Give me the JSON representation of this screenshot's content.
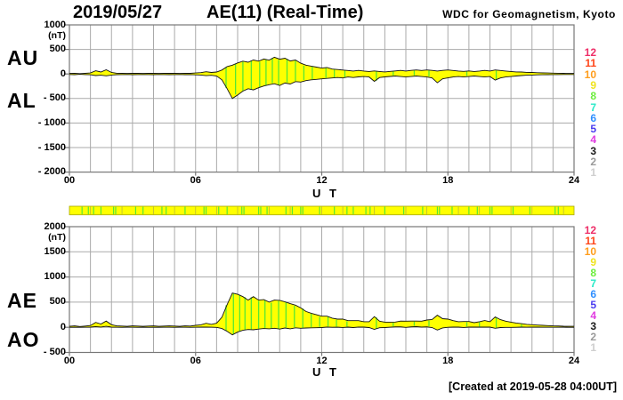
{
  "header": {
    "date": "2019/05/27",
    "title": "AE(11) (Real-Time)",
    "credit": "WDC for Geomagnetism, Kyoto"
  },
  "footer": {
    "created": "[Created at 2019-05-28 04:00UT]"
  },
  "colors": {
    "fill": "#ffff00",
    "trace": "#111111",
    "grid": "#aaaaaa",
    "border": "#777777",
    "gap_line": "#55e833",
    "bar_fill": "#ffff00",
    "bar_border": "#a8a800",
    "bar_dark_tick": "#b8b83a"
  },
  "station_numbers": [
    {
      "label": "12",
      "color": "#ee2e68"
    },
    {
      "label": "11",
      "color": "#ff4418"
    },
    {
      "label": "10",
      "color": "#ff9d1c"
    },
    {
      "label": "9",
      "color": "#f0e320"
    },
    {
      "label": "8",
      "color": "#6ced3d"
    },
    {
      "label": "7",
      "color": "#2ae9c8"
    },
    {
      "label": "6",
      "color": "#2f8fff"
    },
    {
      "label": "5",
      "color": "#4a3cf0"
    },
    {
      "label": "4",
      "color": "#e03ce0"
    },
    {
      "label": "3",
      "color": "#1a1a1a"
    },
    {
      "label": "2",
      "color": "#9a9a9a"
    },
    {
      "label": "1",
      "color": "#cfcfcf"
    }
  ],
  "chart_data": [
    {
      "type": "area",
      "panel": "top",
      "xlabel": "U T",
      "unit": "(nT)",
      "xlim": [
        0,
        24
      ],
      "ylim": [
        -2000,
        1000
      ],
      "x_ticks": [
        "00",
        "06",
        "12",
        "18",
        "24"
      ],
      "x_tick_hours": [
        0,
        6,
        12,
        18,
        24
      ],
      "y_ticks": [
        "1000",
        "500",
        "0",
        "- 500",
        "- 1000",
        "- 1500",
        "- 2000"
      ],
      "y_tick_values": [
        1000,
        500,
        0,
        -500,
        -1000,
        -1500,
        -2000
      ],
      "x_start": 0,
      "x_step_hours": 0.25,
      "series": [
        {
          "name": "AU",
          "values": [
            10,
            15,
            8,
            12,
            20,
            65,
            40,
            85,
            30,
            15,
            12,
            10,
            15,
            12,
            10,
            12,
            15,
            10,
            12,
            15,
            12,
            10,
            15,
            12,
            20,
            28,
            45,
            30,
            40,
            80,
            150,
            180,
            225,
            260,
            240,
            285,
            260,
            305,
            280,
            340,
            300,
            320,
            265,
            285,
            220,
            180,
            160,
            140,
            120,
            130,
            100,
            90,
            80,
            70,
            60,
            72,
            60,
            50,
            62,
            50,
            42,
            52,
            62,
            72,
            60,
            72,
            82,
            70,
            82,
            72,
            60,
            72,
            82,
            70,
            60,
            52,
            62,
            50,
            60,
            72,
            60,
            82,
            70,
            60,
            50,
            42,
            40,
            32,
            30,
            26,
            22,
            20,
            16,
            15,
            12,
            10,
            10
          ]
        },
        {
          "name": "AL",
          "values": [
            -10,
            -14,
            -8,
            -12,
            -16,
            -32,
            -26,
            -38,
            -22,
            -14,
            -12,
            -10,
            -14,
            -12,
            -10,
            -12,
            -14,
            -10,
            -12,
            -14,
            -12,
            -10,
            -14,
            -12,
            -18,
            -22,
            -35,
            -28,
            -42,
            -120,
            -300,
            -500,
            -430,
            -350,
            -300,
            -325,
            -280,
            -245,
            -220,
            -200,
            -235,
            -185,
            -205,
            -155,
            -165,
            -135,
            -120,
            -110,
            -100,
            -90,
            -82,
            -72,
            -82,
            -62,
            -72,
            -60,
            -52,
            -62,
            -150,
            -72,
            -60,
            -50,
            -42,
            -52,
            -62,
            -52,
            -42,
            -52,
            -62,
            -82,
            -180,
            -100,
            -80,
            -62,
            -52,
            -62,
            -52,
            -42,
            -52,
            -62,
            -52,
            -125,
            -82,
            -62,
            -52,
            -42,
            -32,
            -26,
            -22,
            -18,
            -16,
            -14,
            -12,
            -12,
            -10,
            -10,
            -10
          ]
        }
      ],
      "gap_line_hours": [
        7.45,
        7.9,
        8.25,
        8.65,
        9.05,
        9.35,
        9.65,
        9.95,
        10.35,
        10.75,
        11.15,
        11.55,
        12.2,
        12.6,
        13.1,
        14.6,
        15.4,
        16.4,
        17.1,
        18.9,
        20.3,
        23.2
      ]
    },
    {
      "type": "area",
      "panel": "bottom",
      "xlabel": "U T",
      "unit": "(nT)",
      "xlim": [
        0,
        24
      ],
      "ylim": [
        -500,
        2000
      ],
      "x_ticks": [
        "00",
        "06",
        "12",
        "18",
        "24"
      ],
      "x_tick_hours": [
        0,
        6,
        12,
        18,
        24
      ],
      "y_ticks": [
        "2000",
        "1500",
        "1000",
        "500",
        "0",
        "- 500"
      ],
      "y_tick_values": [
        2000,
        1500,
        1000,
        500,
        0,
        -500
      ],
      "x_start": 0,
      "x_step_hours": 0.25,
      "series": [
        {
          "name": "AE",
          "values": [
            20,
            29,
            16,
            24,
            36,
            97,
            66,
            123,
            52,
            29,
            24,
            20,
            29,
            24,
            20,
            24,
            29,
            20,
            24,
            29,
            24,
            20,
            29,
            24,
            38,
            50,
            80,
            58,
            82,
            200,
            450,
            680,
            655,
            610,
            540,
            610,
            540,
            550,
            500,
            540,
            535,
            505,
            470,
            440,
            385,
            315,
            280,
            250,
            220,
            220,
            182,
            162,
            162,
            132,
            132,
            132,
            112,
            112,
            212,
            122,
            102,
            102,
            104,
            124,
            122,
            124,
            124,
            122,
            144,
            154,
            240,
            172,
            162,
            132,
            112,
            114,
            114,
            92,
            112,
            134,
            112,
            207,
            152,
            122,
            102,
            84,
            72,
            58,
            52,
            44,
            38,
            34,
            28,
            27,
            22,
            20,
            20
          ]
        },
        {
          "name": "AO",
          "values": [
            0,
            2,
            0,
            1,
            3,
            15,
            6,
            20,
            4,
            1,
            0,
            1,
            2,
            0,
            1,
            0,
            2,
            0,
            1,
            2,
            0,
            1,
            2,
            0,
            2,
            4,
            6,
            2,
            -2,
            -25,
            -80,
            -150,
            -95,
            -60,
            -45,
            -50,
            -35,
            -25,
            -30,
            -20,
            -35,
            -15,
            -30,
            -10,
            -20,
            -15,
            -10,
            -8,
            -5,
            5,
            0,
            2,
            -4,
            3,
            -5,
            5,
            3,
            -5,
            -40,
            -8,
            -6,
            2,
            8,
            8,
            -2,
            8,
            15,
            6,
            8,
            -6,
            -55,
            -12,
            0,
            3,
            3,
            -4,
            4,
            3,
            3,
            4,
            3,
            -20,
            -5,
            -2,
            -1,
            0,
            3,
            2,
            3,
            3,
            2,
            2,
            1,
            1,
            1,
            0,
            0
          ]
        }
      ],
      "gap_line_hours": [
        7.45,
        7.8,
        8.1,
        8.35,
        8.65,
        9.0,
        9.3,
        9.6,
        9.95,
        10.3,
        10.7,
        11.1,
        11.5,
        11.9,
        12.3,
        12.7,
        13.2,
        14.6,
        15.4,
        16.4,
        17.1,
        18.9,
        19.5,
        20.3,
        21.5,
        23.2
      ]
    }
  ],
  "availability_bar": {
    "green_marks_hours": [
      0.6,
      0.9,
      1.15,
      1.5,
      2.1,
      2.2,
      3.15,
      3.5,
      4.4,
      4.6,
      5.5,
      6.4,
      6.5,
      7.1,
      7.5,
      8.2,
      8.3,
      9.0,
      9.1,
      9.4,
      10.3,
      10.6,
      11.0,
      11.1,
      11.9,
      12.6,
      13.2,
      13.5,
      14.1,
      14.3,
      15.0,
      15.9,
      16.8,
      17.5,
      17.6,
      18.2,
      19.0,
      19.4,
      20.0,
      20.1,
      21.1,
      21.9,
      23.1,
      23.25
    ],
    "dark_marks_hours": [
      1.0,
      2.5,
      4.0,
      5.0,
      6.0,
      7.0,
      8.0,
      9.5,
      10.5,
      12.0,
      13.0,
      14.5,
      16.0,
      17.0,
      18.5,
      19.5,
      21.0,
      22.0,
      23.5
    ]
  }
}
